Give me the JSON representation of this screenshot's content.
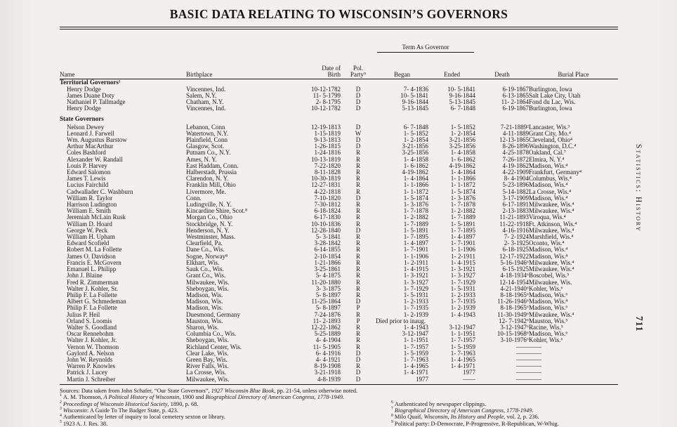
{
  "page": {
    "title": "BASIC DATA RELATING TO WISCONSIN’S GOVERNORS",
    "side_label": "Statistics: History",
    "page_number": "711"
  },
  "table": {
    "headers": {
      "name": "Name",
      "birthplace": "Birthplace",
      "date_of": "Date of",
      "birth": "Birth",
      "pol": "Pol.",
      "party": "Party⁹",
      "term_as_governor": "Term As Governor",
      "began": "Began",
      "ended": "Ended",
      "death": "Death",
      "burial_place": "Burial Place"
    },
    "rows": [
      {
        "group": "Territorial Governors¹"
      },
      {
        "name": "Henry Dodge",
        "birthplace": "Vincennes, Ind.",
        "birth": "10-12-1782",
        "party": "D",
        "began": "7- 4-1836",
        "ended": "10- 5-1841",
        "death": "6-19-1867",
        "burial": "Burlington, Iowa"
      },
      {
        "name": "James Duane Doty",
        "birthplace": "Salem, N.Y.",
        "birth": "11- 5-1799",
        "party": "D",
        "began": "10- 5-1841",
        "ended": "9-16-1844",
        "death": "6-13-1865",
        "burial": "Salt Lake City, Utah"
      },
      {
        "name": "Nathaniel P. Tallmadge",
        "birthplace": "Chatham, N.Y.",
        "birth": "2- 8-1795",
        "party": "D",
        "began": "9-16-1844",
        "ended": "5-13-1845",
        "death": "11- 2-1864",
        "burial": "Fond du Lac, Wis."
      },
      {
        "name": "Henry Dodge",
        "birthplace": "Vincennes, Ind.",
        "birth": "10-12-1782",
        "party": "D",
        "began": "5-13-1845",
        "ended": "6- 7-1848",
        "death": "6-19-1867",
        "burial": "Burlington, Iowa"
      },
      {
        "group": "State Governors",
        "gap": true
      },
      {
        "name": "Nelson Dewey",
        "birthplace": "Lebanon, Conn",
        "birth": "12-19-1813",
        "party": "D",
        "began": "6- 7-1848",
        "ended": "1- 5-1852",
        "death": "7-21-1889²",
        "burial": "Lancaster, Wis.³"
      },
      {
        "name": "Leonard J. Farwell",
        "birthplace": "Watertown, N.Y.",
        "birth": "1-15-1819",
        "party": "W",
        "began": "1- 5-1852",
        "ended": "1- 2-1854",
        "death": "4-11-1889",
        "burial": "Grant City, Mo.⁴"
      },
      {
        "name": "Wm. Augustus Barstow",
        "birthplace": "Plainfield, Conn",
        "birth": "9-13-1813",
        "party": "D",
        "began": "1- 2-1854",
        "ended": "3-21-1856",
        "death": "12-13-1865",
        "burial": "Cleveland, Ohio⁴"
      },
      {
        "name": "Arthur MacArthur",
        "birthplace": "Glasgow, Scot.",
        "birth": "1-26-1815",
        "party": "D",
        "began": "3-21-1856",
        "ended": "3-25-1856",
        "death": "8-26-1896",
        "burial": "Washington, D.C.⁴"
      },
      {
        "name": "Coles Bashford",
        "birthplace": "Putnam Co., N.Y.",
        "birth": "1-24-1816",
        "party": "R",
        "began": "3-25-1856",
        "ended": "1- 4-1858",
        "death": "4-25-1878",
        "burial": "Oakland, Cal.⁷"
      },
      {
        "name": "Alexander W. Randall",
        "birthplace": "Ames, N. Y.",
        "birth": "10-13-1819",
        "party": "R",
        "began": "1- 4-1858",
        "ended": "1- 6-1862",
        "death": "7-26-1872",
        "burial": "Elmira, N. Y.⁴"
      },
      {
        "name": "Louis P. Harvey",
        "birthplace": "East Haddam, Conn.",
        "birth": "7-22-1820",
        "party": "R",
        "began": "1- 6-1862",
        "ended": "4-19-1862",
        "death": "4-19-1862",
        "burial": "Madison, Wis.⁴"
      },
      {
        "name": "Edward Salomon",
        "birthplace": "Halberstadt, Prussia",
        "birth": "8-11-1828",
        "party": "R",
        "began": "4-19-1862",
        "ended": "1- 4-1864",
        "death": "4-22-1909",
        "burial": "Frankfurt, Germany⁴"
      },
      {
        "name": "James T. Lewis",
        "birthplace": "Clarendon, N. Y.",
        "birth": "10-30-1819",
        "party": "R",
        "began": "1- 4-1864",
        "ended": "1- 1-1866",
        "death": "8- 4-1904",
        "burial": "Columbus, Wis.⁴"
      },
      {
        "name": "Lucius Fairchild",
        "birthplace": "Franklin Mill, Ohio",
        "birth": "12-27-1831",
        "party": "R",
        "began": "1- 1-1866",
        "ended": "1- 1-1872",
        "death": "5-23-1896",
        "burial": "Madison, Wis.⁴"
      },
      {
        "name": "Cadwallader C. Washburn",
        "birthplace": "Livermore, Me.",
        "birth": "4-22-1818",
        "party": "R",
        "began": "1- 1-1872",
        "ended": "1- 5-1874",
        "death": "5-14-1882",
        "burial": "La Crosse, Wis.⁴"
      },
      {
        "name": "William R. Taylor",
        "birthplace": "Conn.",
        "birth": "7-10-1820",
        "party": "D",
        "began": "1- 5-1874",
        "ended": "1- 3-1876",
        "death": "3-17-1909",
        "burial": "Madison, Wis.⁴"
      },
      {
        "name": "Harrison Ludington",
        "birthplace": "Ludingville, N. Y.",
        "birth": "7-30-1812",
        "party": "R",
        "began": "1- 3-1876",
        "ended": "1- 7-1878",
        "death": "6-17-1891",
        "burial": "Milwaukee, Wis.⁴"
      },
      {
        "name": "William E. Smith",
        "birthplace": "Kincardine Shire, Scot.⁸",
        "birth": "6-18-1824",
        "party": "R",
        "began": "1- 7-1878",
        "ended": "1- 2-1882",
        "death": "2-13-1883",
        "burial": "Milwaukee, Wis.⁴"
      },
      {
        "name": "Jeremiah McLain Rusk",
        "birthplace": "Morgan Co., Ohio",
        "birth": "6-17-1830",
        "party": "R",
        "began": "1- 2-1882",
        "ended": "1- 7-1889",
        "death": "11-21-1893",
        "burial": "Viroqua, Wis.⁴"
      },
      {
        "name": "William D. Hoard",
        "birthplace": "Stockbridge, N. Y.",
        "birth": "10-10-1836",
        "party": "R",
        "began": "1- 7-1889",
        "ended": "1- 5-1891",
        "death": "11-22-1918",
        "burial": "Ft. Atkinson, Wis.⁴"
      },
      {
        "name": "George W. Peck",
        "birthplace": "Henderson, N. Y.",
        "birth": "12-28-1840",
        "party": "D",
        "began": "1- 5-1891",
        "ended": "1- 7-1895",
        "death": "4-16-1916",
        "burial": "Milwaukee, Wis.⁴"
      },
      {
        "name": "William H. Upham",
        "birthplace": "Westminster, Mass.",
        "birth": "5- 3-1841",
        "party": "R",
        "began": "1- 7-1895",
        "ended": "1- 4-1897",
        "death": "7- 2-1924",
        "burial": "Marshfield, Wis.⁴"
      },
      {
        "name": "Edward Scofield",
        "birthplace": "Clearfield, Pa.",
        "birth": "3-28-1842",
        "party": "R",
        "began": "1- 4-1897",
        "ended": "1- 7-1901",
        "death": "2- 3-1925",
        "burial": "Oconto, Wis.⁴"
      },
      {
        "name": "Robert M. La Follette",
        "birthplace": "Dane Co., Wis.",
        "birth": "6-14-1855",
        "party": "R",
        "began": "1- 7-1901",
        "ended": "1- 1-1906",
        "death": "6-18-1925",
        "burial": "Madison, Wis.⁴"
      },
      {
        "name": "James O. Davidson",
        "birthplace": "Sogne, Norway⁸",
        "birth": "2-10-1854",
        "party": "R",
        "began": "1- 1-1906",
        "ended": "1- 2-1911",
        "death": "12-17-1922",
        "burial": "Madison, Wis.⁴"
      },
      {
        "name": "Francis E. McGovern",
        "birthplace": "Elkhart, Wis.",
        "birth": "1-21-1866",
        "party": "R",
        "began": "1- 2-1911",
        "ended": "1- 4-1915",
        "death": "5-16-1946⁶",
        "burial": "Milwaukee, Wis.⁴"
      },
      {
        "name": "Emanuel L. Philipp",
        "birthplace": "Sauk Co., Wis.",
        "birth": "3-25-1861",
        "party": "R",
        "began": "1- 4-1915",
        "ended": "1- 3-1921",
        "death": "6-15-1925",
        "burial": "Milwaukee, Wis.⁴"
      },
      {
        "name": "John J. Blaine",
        "birthplace": "Grant Co., Wis.",
        "birth": "5- 4-1875",
        "party": "R",
        "began": "1- 3-1921",
        "ended": "1- 3-1927",
        "death": "4-18-1934⁶",
        "burial": "Boscobel, Wis.⁵"
      },
      {
        "name": "Fred R. Zimmerman",
        "birthplace": "Milwaukee, Wis.",
        "birth": "11-20-1880",
        "party": "R",
        "began": "1- 3-1927",
        "ended": "1- 7-1929",
        "death": "12-14-1954",
        "burial": "Milwaukee, Wis."
      },
      {
        "name": "Walter J. Kohler, Sr.",
        "birthplace": "Sheboygan, Wis.",
        "birth": "3- 3-1875",
        "party": "R",
        "began": "1- 7-1929",
        "ended": "1- 5-1931",
        "death": "4-21-1940⁶",
        "burial": "Kohler, Wis.⁶"
      },
      {
        "name": "Philip F. La Follette",
        "birthplace": "Madison, Wis.",
        "birth": "5- 8-1897",
        "party": "R",
        "began": "1- 5-1931",
        "ended": "1- 2-1933",
        "death": "8-18-1965⁶",
        "burial": "Madison, Wis.⁶"
      },
      {
        "name": "Albert G. Schmedeman",
        "birthplace": "Madison, Wis.",
        "birth": "11-25-1864",
        "party": "D",
        "began": "1- 2-1933",
        "ended": "1- 7-1935",
        "death": "11-26-1946⁶",
        "burial": "Madison, Wis.⁴"
      },
      {
        "name": "Philip F. La Follette",
        "birthplace": "Madison, Wis.",
        "birth": "5- 8-1897",
        "party": "P",
        "began": "1- 7-1935",
        "ended": "1- 2-1939",
        "death": "8-18-1965⁶",
        "burial": "Madison, Wis.⁶"
      },
      {
        "name": "Julius P. Heil",
        "birthplace": "Duesmond, Germany",
        "birth": "7-24-1876",
        "party": "R",
        "began": "1- 2-1939",
        "ended": "1- 4-1943",
        "death": "11-30-1949⁶",
        "burial": "Milwaukee, Wis.⁴"
      },
      {
        "name": "Orland S. Loomis",
        "birthplace": "Mauston, Wis.",
        "birth": "11- 2-1893",
        "party": "P",
        "began": "Died prior to inaug.",
        "span": true,
        "death": "12- 7-1942⁶",
        "burial": "Mauston, Wis.⁵"
      },
      {
        "name": "Walter S. Goodland",
        "birthplace": "Sharon, Wis.",
        "birth": "12-22-1862",
        "party": "R",
        "began": "1- 4-1943",
        "ended": "3-12-1947",
        "death": "3-12-1947⁶",
        "burial": "Racine, Wis.⁵"
      },
      {
        "name": "Oscar Rennebohm",
        "birthplace": "Columbia Co., Wis.",
        "birth": "5-25-1889",
        "party": "R",
        "began": "3-12-1947",
        "ended": "1- 1-1951",
        "death": "10-15-1968⁶",
        "burial": "Madison, Wis.⁶"
      },
      {
        "name": "Walter J. Kohler, Jr.",
        "birthplace": "Sheboygan, Wis.",
        "birth": "4- 4-1904",
        "party": "R",
        "began": "1- 1-1951",
        "ended": "1- 7-1957",
        "death": "3-10-1976⁶",
        "burial": "Kohler, Wis.⁶"
      },
      {
        "name": "Vernon W. Thomson",
        "birthplace": "Richland Center, Wis.",
        "birth": "11- 5-1905",
        "party": "R",
        "began": "1- 7-1957",
        "ended": "1- 5-1959",
        "death": "——",
        "burial": "——"
      },
      {
        "name": "Gaylord A. Nelson",
        "birthplace": "Clear Lake, Wis.",
        "birth": "6- 4-1916",
        "party": "D",
        "began": "1- 5-1959",
        "ended": "1- 7-1963",
        "death": "——",
        "burial": "——"
      },
      {
        "name": "John W. Reynolds",
        "birthplace": "Green Bay, Wis.",
        "birth": "4- 4-1921",
        "party": "D",
        "began": "1- 7-1963",
        "ended": "1- 4-1965",
        "death": "——",
        "burial": "——"
      },
      {
        "name": "Warren P. Knowles",
        "birthplace": "River Falls, Wis.",
        "birth": "8-19-1908",
        "party": "R",
        "began": "1- 4-1965",
        "ended": "1- 4-1971",
        "death": "——",
        "burial": "——"
      },
      {
        "name": "Patrick J. Lucey",
        "birthplace": "La Crosse, Wis.",
        "birth": "3-21-1918",
        "party": "D",
        "began": "1- 4-1971",
        "ended": "1977",
        "death": "——",
        "burial": "——"
      },
      {
        "name": "Martin J. Schreiber",
        "birthplace": "Milwaukee, Wis.",
        "birth": "4-8-1939",
        "party": "D",
        "began": "1977",
        "ended": "——",
        "death": "——",
        "burial": "——"
      }
    ]
  },
  "notes": {
    "sources": [
      {
        "t": "Sources: Data taken from John Schafer, “Our State Governors”, "
      },
      {
        "t": "1927 Wisconsin Blue Book",
        "i": true
      },
      {
        "t": ", pp. 21-54, unless otherwise noted."
      }
    ],
    "left": [
      {
        "sup": "1",
        "parts": [
          {
            "t": "A. M. Thomson, "
          },
          {
            "t": "A Political History of Wisconsin",
            "i": true
          },
          {
            "t": ", 1900 and "
          },
          {
            "t": "Biographical Directory of American Congress, 1778-1949",
            "i": true
          },
          {
            "t": "."
          }
        ]
      },
      {
        "sup": "2",
        "parts": [
          {
            "t": "Proceedings of Wisconsin Historical Society",
            "i": true
          },
          {
            "t": ", 1890, p. 68."
          }
        ]
      },
      {
        "sup": "3",
        "parts": [
          {
            "t": "Wisconsin",
            "i": true
          },
          {
            "t": ": A Guide To The Badger State, p. 423."
          }
        ]
      },
      {
        "sup": "4",
        "parts": [
          {
            "t": "Authenticated by letter of inquiry to local cemetery sexton or library."
          }
        ]
      },
      {
        "sup": "5",
        "parts": [
          {
            "t": "1923 A. J. Res. 38."
          }
        ]
      }
    ],
    "right": [
      {
        "sup": "6",
        "parts": [
          {
            "t": "Authenticated by newspaper clippings."
          }
        ]
      },
      {
        "sup": "7",
        "parts": [
          {
            "t": "Biographical Directory of American Congress, 1778-1949",
            "i": true
          },
          {
            "t": "."
          }
        ]
      },
      {
        "sup": "8",
        "parts": [
          {
            "t": "Milo Quaif, "
          },
          {
            "t": "Wisconsin, Its History and People",
            "i": true
          },
          {
            "t": ", vol. 2, p. 236."
          }
        ]
      },
      {
        "sup": "9",
        "parts": [
          {
            "t": "Political party: D-Democrate, P-Progressive, R-Republican, W-Whig."
          }
        ]
      }
    ]
  }
}
